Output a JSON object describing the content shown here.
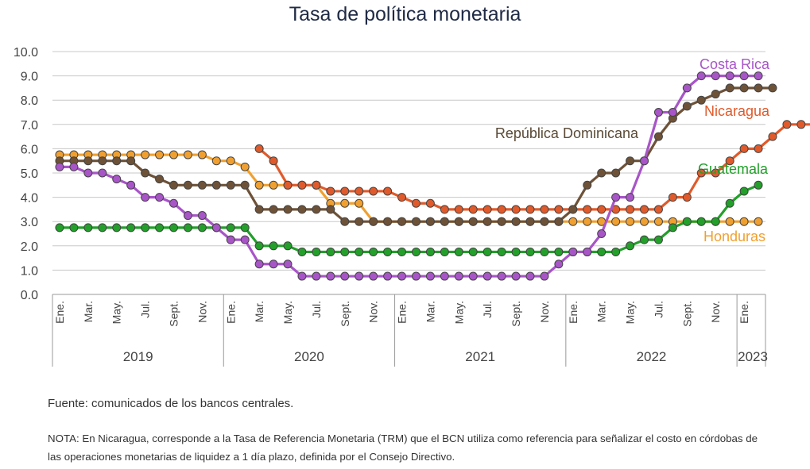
{
  "chart_data": {
    "type": "line",
    "title": "Tasa de política monetaria",
    "xlabel": "",
    "ylabel": "",
    "ylim": [
      0,
      10
    ],
    "yticks": [
      "0.0",
      "1.0",
      "2.0",
      "3.0",
      "4.0",
      "5.0",
      "6.0",
      "7.0",
      "8.0",
      "9.0",
      "10.0"
    ],
    "grid": true,
    "legend": "inline labels at line ends",
    "month_tick_labels": [
      "Ene.",
      "Mar.",
      "May.",
      "Jul.",
      "Sept.",
      "Nov."
    ],
    "jan_2023_label": "Ene.",
    "years": [
      "2019",
      "2020",
      "2021",
      "2022",
      "2023"
    ],
    "x_start": "2019-01",
    "x_end": "2023-02",
    "series": [
      {
        "name": "Costa Rica",
        "color": "#a855c8",
        "start": "2019-01",
        "values": [
          5.25,
          5.25,
          5.0,
          5.0,
          4.75,
          4.5,
          4.0,
          4.0,
          3.75,
          3.25,
          3.25,
          2.75,
          2.25,
          2.25,
          1.25,
          1.25,
          1.25,
          0.75,
          0.75,
          0.75,
          0.75,
          0.75,
          0.75,
          0.75,
          0.75,
          0.75,
          0.75,
          0.75,
          0.75,
          0.75,
          0.75,
          0.75,
          0.75,
          0.75,
          0.75,
          1.25,
          1.75,
          1.75,
          2.5,
          4.0,
          4.0,
          5.5,
          7.5,
          7.5,
          8.5,
          9.0,
          9.0,
          9.0,
          9.0,
          9.0
        ]
      },
      {
        "name": "República Dominicana",
        "color": "#6e5238",
        "start": "2019-01",
        "values": [
          5.5,
          5.5,
          5.5,
          5.5,
          5.5,
          5.5,
          5.0,
          4.75,
          4.5,
          4.5,
          4.5,
          4.5,
          4.5,
          4.5,
          3.5,
          3.5,
          3.5,
          3.5,
          3.5,
          3.5,
          3.0,
          3.0,
          3.0,
          3.0,
          3.0,
          3.0,
          3.0,
          3.0,
          3.0,
          3.0,
          3.0,
          3.0,
          3.0,
          3.0,
          3.0,
          3.0,
          3.5,
          4.5,
          5.0,
          5.0,
          5.5,
          5.5,
          6.5,
          7.25,
          7.75,
          8.0,
          8.25,
          8.5,
          8.5,
          8.5,
          8.5
        ]
      },
      {
        "name": "Nicaragua",
        "color": "#e05a2b",
        "start": "2020-03",
        "values": [
          6.0,
          5.5,
          4.5,
          4.5,
          4.5,
          4.25,
          4.25,
          4.25,
          4.25,
          4.25,
          4.0,
          3.75,
          3.75,
          3.5,
          3.5,
          3.5,
          3.5,
          3.5,
          3.5,
          3.5,
          3.5,
          3.5,
          3.5,
          3.5,
          3.5,
          3.5,
          3.5,
          3.5,
          3.5,
          4.0,
          4.0,
          5.0,
          5.0,
          5.5,
          6.0,
          6.0,
          6.5,
          7.0,
          7.0,
          7.0
        ]
      },
      {
        "name": "Guatemala",
        "color": "#22a02a",
        "start": "2019-01",
        "values": [
          2.75,
          2.75,
          2.75,
          2.75,
          2.75,
          2.75,
          2.75,
          2.75,
          2.75,
          2.75,
          2.75,
          2.75,
          2.75,
          2.75,
          2.0,
          2.0,
          2.0,
          1.75,
          1.75,
          1.75,
          1.75,
          1.75,
          1.75,
          1.75,
          1.75,
          1.75,
          1.75,
          1.75,
          1.75,
          1.75,
          1.75,
          1.75,
          1.75,
          1.75,
          1.75,
          1.75,
          1.75,
          1.75,
          1.75,
          1.75,
          2.0,
          2.25,
          2.25,
          2.75,
          3.0,
          3.0,
          3.0,
          3.75,
          4.25,
          4.5
        ]
      },
      {
        "name": "Honduras",
        "color": "#f0a030",
        "start": "2019-01",
        "values": [
          5.75,
          5.75,
          5.75,
          5.75,
          5.75,
          5.75,
          5.75,
          5.75,
          5.75,
          5.75,
          5.75,
          5.5,
          5.5,
          5.25,
          4.5,
          4.5,
          4.5,
          4.5,
          4.5,
          3.75,
          3.75,
          3.75,
          3.0,
          3.0,
          3.0,
          3.0,
          3.0,
          3.0,
          3.0,
          3.0,
          3.0,
          3.0,
          3.0,
          3.0,
          3.0,
          3.0,
          3.0,
          3.0,
          3.0,
          3.0,
          3.0,
          3.0,
          3.0,
          3.0,
          3.0,
          3.0,
          3.0,
          3.0,
          3.0,
          3.0
        ]
      }
    ]
  },
  "source_note": "Fuente: comunicados de los bancos centrales.",
  "footnote": "NOTA: En Nicaragua, corresponde a la Tasa de Referencia Monetaria (TRM) que el BCN utiliza como referencia para señalizar el costo en córdobas de las operaciones monetarias de liquidez a 1 día plazo, definida por el Consejo Directivo."
}
